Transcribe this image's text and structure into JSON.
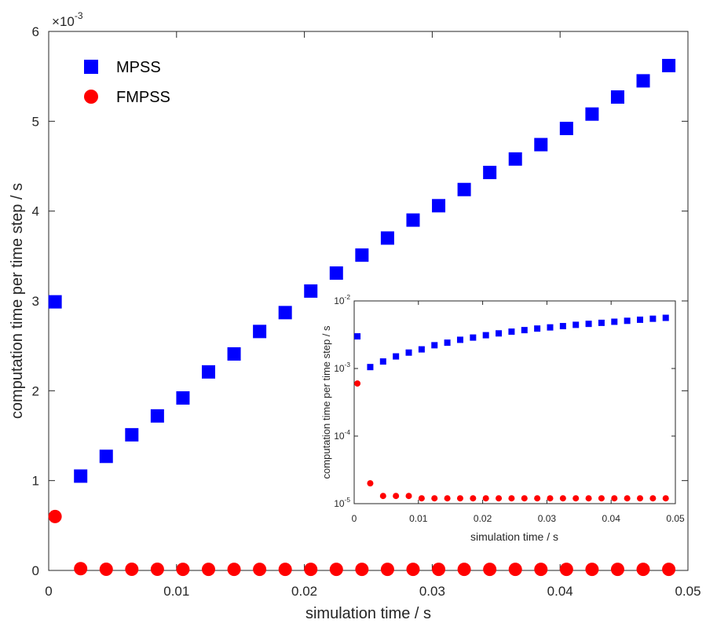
{
  "chart_data": [
    {
      "type": "scatter",
      "xlabel": "simulation time / s",
      "ylabel": "computation time per time step / s",
      "xlim": [
        0,
        0.05
      ],
      "ylim": [
        0,
        0.006
      ],
      "x_ticks": [
        "0",
        "0.01",
        "0.02",
        "0.03",
        "0.04",
        "0.05"
      ],
      "y_ticks": [
        "0",
        "1",
        "2",
        "3",
        "4",
        "5",
        "6"
      ],
      "y_exponent": {
        "base": "10",
        "power": "-3",
        "prefix": "×"
      },
      "grid": false,
      "legend_position": "top-left",
      "x": [
        0.0005,
        0.0025,
        0.0045,
        0.0065,
        0.0085,
        0.0105,
        0.0125,
        0.0145,
        0.0165,
        0.0185,
        0.0205,
        0.0225,
        0.0245,
        0.0265,
        0.0285,
        0.0305,
        0.0325,
        0.0345,
        0.0365,
        0.0385,
        0.0405,
        0.0425,
        0.0445,
        0.0465,
        0.0485
      ],
      "series": [
        {
          "name": "MPSS",
          "marker": "square",
          "color": "#0000FF",
          "values": [
            0.00299,
            0.00105,
            0.00127,
            0.00151,
            0.00172,
            0.00192,
            0.00221,
            0.00241,
            0.00266,
            0.00287,
            0.00311,
            0.00331,
            0.00351,
            0.0037,
            0.0039,
            0.00406,
            0.00424,
            0.00443,
            0.00458,
            0.00474,
            0.00492,
            0.00508,
            0.00527,
            0.00545,
            0.00562
          ]
        },
        {
          "name": "FMPSS",
          "marker": "circle",
          "color": "#FF0000",
          "values": [
            0.0006,
            2e-05,
            1.3e-05,
            1.3e-05,
            1.3e-05,
            1.2e-05,
            1.2e-05,
            1.2e-05,
            1.2e-05,
            1.2e-05,
            1.2e-05,
            1.2e-05,
            1.2e-05,
            1.2e-05,
            1.2e-05,
            1.2e-05,
            1.2e-05,
            1.2e-05,
            1.2e-05,
            1.2e-05,
            1.2e-05,
            1.2e-05,
            1.2e-05,
            1.2e-05,
            1.2e-05
          ]
        }
      ]
    },
    {
      "type": "scatter",
      "scale_y": "log",
      "xlabel": "simulation time / s",
      "ylabel": "computation time per time step / s",
      "xlim": [
        0,
        0.05
      ],
      "ylim": [
        1e-05,
        0.01
      ],
      "x_ticks": [
        "0",
        "0.01",
        "0.02",
        "0.03",
        "0.04",
        "0.05"
      ],
      "y_ticks": [
        {
          "base": "10",
          "power": "-5"
        },
        {
          "base": "10",
          "power": "-4"
        },
        {
          "base": "10",
          "power": "-3"
        },
        {
          "base": "10",
          "power": "-2"
        }
      ],
      "grid": false,
      "x": [
        0.0005,
        0.0025,
        0.0045,
        0.0065,
        0.0085,
        0.0105,
        0.0125,
        0.0145,
        0.0165,
        0.0185,
        0.0205,
        0.0225,
        0.0245,
        0.0265,
        0.0285,
        0.0305,
        0.0325,
        0.0345,
        0.0365,
        0.0385,
        0.0405,
        0.0425,
        0.0445,
        0.0465,
        0.0485
      ],
      "series": [
        {
          "name": "MPSS",
          "marker": "square",
          "color": "#0000FF",
          "values": [
            0.00299,
            0.00105,
            0.00127,
            0.00151,
            0.00172,
            0.00192,
            0.00221,
            0.00241,
            0.00266,
            0.00287,
            0.00311,
            0.00331,
            0.00351,
            0.0037,
            0.0039,
            0.00406,
            0.00424,
            0.00443,
            0.00458,
            0.00474,
            0.00492,
            0.00508,
            0.00527,
            0.00545,
            0.00562
          ]
        },
        {
          "name": "FMPSS",
          "marker": "circle",
          "color": "#FF0000",
          "values": [
            0.0006,
            2e-05,
            1.3e-05,
            1.3e-05,
            1.3e-05,
            1.2e-05,
            1.2e-05,
            1.2e-05,
            1.2e-05,
            1.2e-05,
            1.2e-05,
            1.2e-05,
            1.2e-05,
            1.2e-05,
            1.2e-05,
            1.2e-05,
            1.2e-05,
            1.2e-05,
            1.2e-05,
            1.2e-05,
            1.2e-05,
            1.2e-05,
            1.2e-05,
            1.2e-05,
            1.2e-05
          ]
        }
      ]
    }
  ]
}
